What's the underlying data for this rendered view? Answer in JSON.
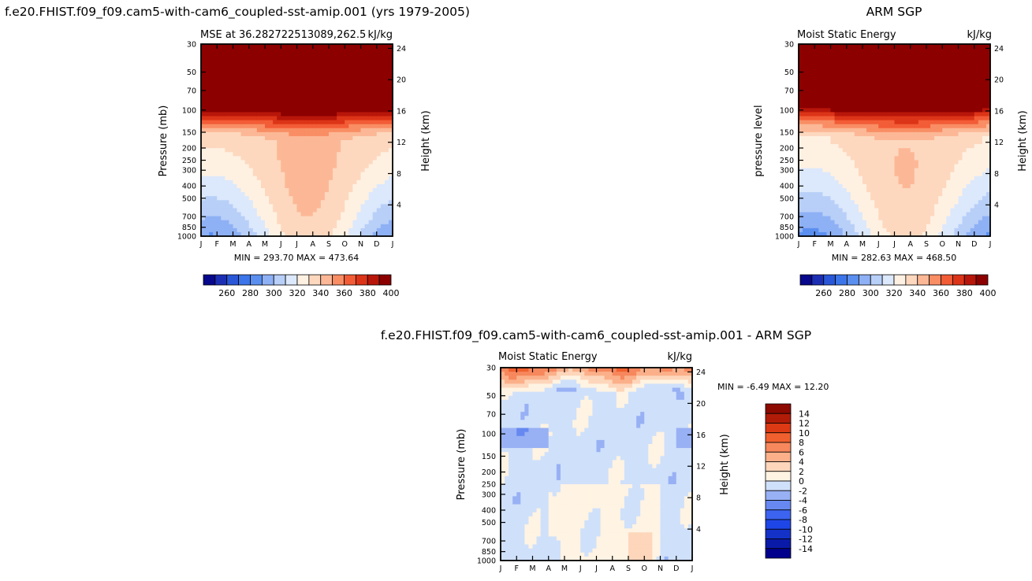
{
  "page": {
    "left_title": "f.e20.FHIST.f09_f09.cam5-with-cam6_coupled-sst-amip.001 (yrs 1979-2005)",
    "right_title": "ARM SGP",
    "diff_title": "f.e20.FHIST.f09_f09.cam5-with-cam6_coupled-sst-amip.001 - ARM SGP"
  },
  "colors": {
    "mse_scale": [
      "#08088c",
      "#1c2fb4",
      "#2a57d8",
      "#3c75ea",
      "#5a8ff0",
      "#8eb0f4",
      "#b8cff8",
      "#dce8fb",
      "#fff1e2",
      "#fdd8bf",
      "#fcb896",
      "#f98d64",
      "#f25c36",
      "#dc3418",
      "#b8160a",
      "#8c0000"
    ],
    "diff_scale": [
      "#00008c",
      "#0a1aa8",
      "#1432c8",
      "#1e46e6",
      "#3c64f0",
      "#6688f0",
      "#98b0f4",
      "#cfe0fa",
      "#fff3e3",
      "#fdd6bb",
      "#fbb08a",
      "#f7875c",
      "#f0602f",
      "#dc3a14",
      "#b01c08",
      "#8c0a00"
    ]
  },
  "chart_data": [
    {
      "type": "heatmap",
      "name": "model",
      "title_left": "MSE at 36.282722513089,262.5",
      "title_right": "kJ/kg",
      "ylabel": "Pressure (mb)",
      "ylabel_right": "Height (km)",
      "x_ticks": [
        "J",
        "F",
        "M",
        "A",
        "M",
        "J",
        "J",
        "A",
        "S",
        "O",
        "N",
        "D",
        "J"
      ],
      "y_ticks": [
        30,
        50,
        70,
        100,
        150,
        200,
        250,
        300,
        400,
        500,
        700,
        850,
        1000
      ],
      "height_ticks": [
        24,
        20,
        16,
        12,
        8,
        4
      ],
      "stats": "MIN = 293.70 MAX = 473.64",
      "colorbar_labels": [
        "260",
        "280",
        "300",
        "320",
        "340",
        "360",
        "380",
        "400"
      ],
      "levels": [
        256,
        264,
        272,
        280,
        288,
        296,
        304,
        312,
        320,
        328,
        336,
        344,
        352,
        360,
        368,
        376,
        384,
        392,
        400
      ],
      "lev_kind": "mse",
      "min": 293.7,
      "max": 473.64
    },
    {
      "type": "heatmap",
      "name": "obs",
      "title_left": "Moist Static Energy",
      "title_right": "kJ/kg",
      "ylabel": "pressure level",
      "ylabel_right": "Height (km)",
      "x_ticks": [
        "J",
        "F",
        "M",
        "A",
        "M",
        "J",
        "J",
        "A",
        "S",
        "O",
        "N",
        "D",
        "J"
      ],
      "y_ticks": [
        30,
        50,
        70,
        100,
        150,
        200,
        250,
        300,
        400,
        500,
        700,
        850,
        1000
      ],
      "height_ticks": [
        24,
        20,
        16,
        12,
        8,
        4
      ],
      "stats": "MIN = 282.63 MAX = 468.50",
      "colorbar_labels": [
        "260",
        "280",
        "300",
        "320",
        "340",
        "360",
        "380",
        "400"
      ],
      "lev_kind": "mse",
      "min": 282.63,
      "max": 468.5
    },
    {
      "type": "heatmap",
      "name": "difference",
      "title_left": "Moist Static Energy",
      "title_right": "kJ/kg",
      "ylabel": "Pressure (mb)",
      "ylabel_right": "Height (km)",
      "x_ticks": [
        "J",
        "F",
        "M",
        "A",
        "M",
        "J",
        "J",
        "A",
        "S",
        "O",
        "N",
        "D",
        "J"
      ],
      "y_ticks": [
        30,
        50,
        70,
        100,
        150,
        200,
        250,
        300,
        400,
        500,
        700,
        850,
        1000
      ],
      "height_ticks": [
        24,
        20,
        16,
        12,
        8,
        4
      ],
      "stats": "MIN = -6.49 MAX = 12.20",
      "colorbar_labels": [
        "14",
        "12",
        "10",
        "8",
        "6",
        "4",
        "2",
        "0",
        "-2",
        "-4",
        "-6",
        "-8",
        "-10",
        "-12",
        "-14"
      ],
      "lev_kind": "diff",
      "min": -6.49,
      "max": 12.2
    }
  ]
}
